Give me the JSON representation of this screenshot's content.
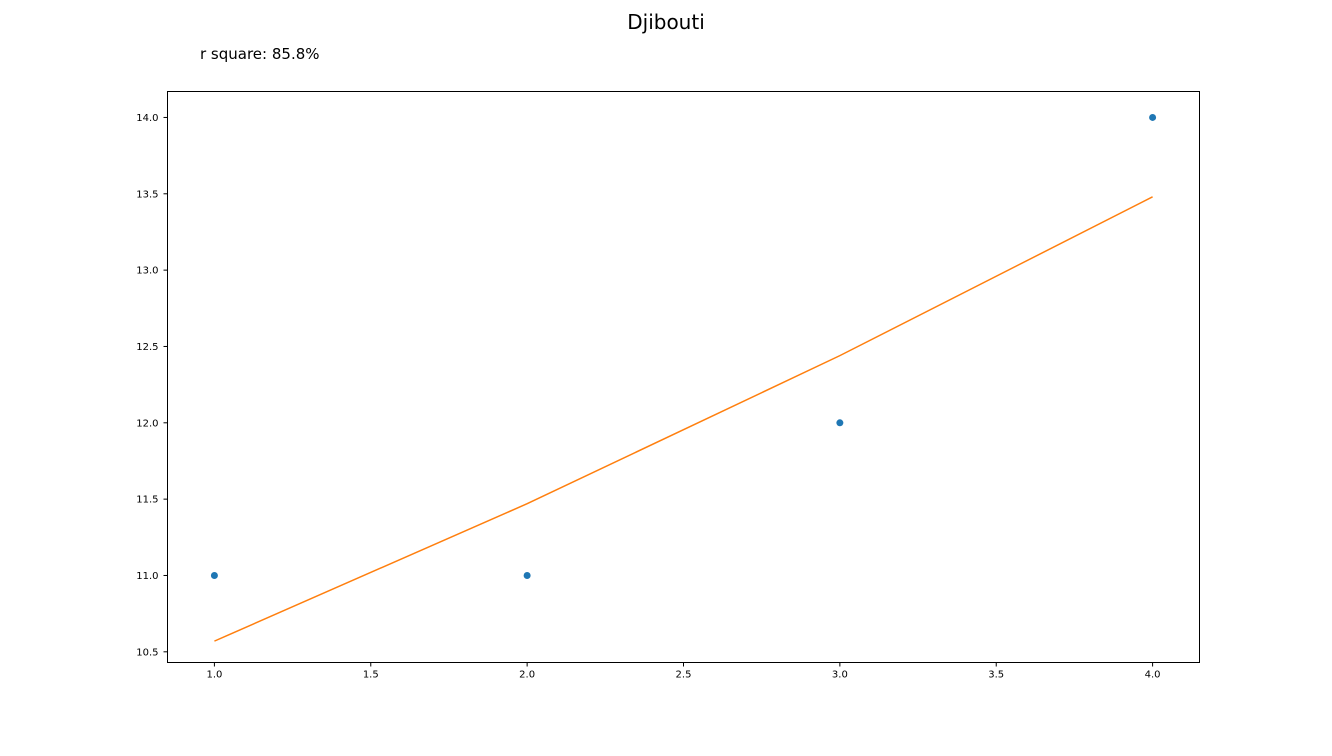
{
  "chart_data": {
    "type": "scatter",
    "title": "Djibouti",
    "annotation": "r square: 85.8%",
    "xlabel": "",
    "ylabel": "",
    "xlim": [
      0.85,
      4.15
    ],
    "ylim": [
      10.43,
      14.17
    ],
    "x_ticks": [
      1.0,
      1.5,
      2.0,
      2.5,
      3.0,
      3.5,
      4.0
    ],
    "x_tick_labels": [
      "1.0",
      "1.5",
      "2.0",
      "2.5",
      "3.0",
      "3.5",
      "4.0"
    ],
    "y_ticks": [
      10.5,
      11.0,
      11.5,
      12.0,
      12.5,
      13.0,
      13.5,
      14.0
    ],
    "y_tick_labels": [
      "10.5",
      "11.0",
      "11.5",
      "12.0",
      "12.5",
      "13.0",
      "13.5",
      "14.0"
    ],
    "grid": false,
    "series": [
      {
        "kind": "scatter",
        "color": "#1f77b4",
        "x": [
          1,
          2,
          3,
          4
        ],
        "y": [
          11.0,
          11.0,
          12.0,
          14.0
        ]
      },
      {
        "kind": "line",
        "color": "#ff7f0e",
        "x": [
          1,
          2,
          3,
          4
        ],
        "y": [
          10.57,
          11.47,
          12.44,
          13.48
        ]
      }
    ]
  }
}
